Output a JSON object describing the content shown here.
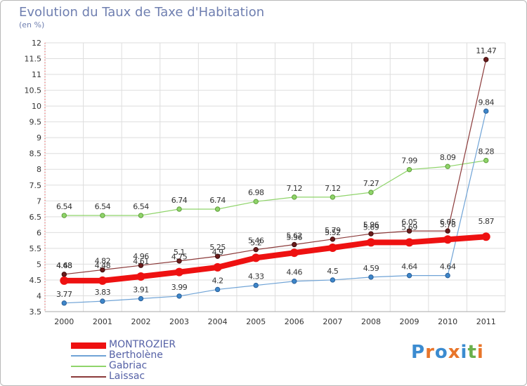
{
  "title": "Evolution du Taux de Taxe d'Habitation",
  "subtitle": "(en %)",
  "logo": {
    "text": "Proxiti",
    "colors": [
      "#3b8bd0",
      "#e8752a",
      "#3b8bd0",
      "#e8752a",
      "#3b8bd0",
      "#6ab04c",
      "#e8752a"
    ]
  },
  "chart_data": {
    "type": "line",
    "title": "Evolution du Taux de Taxe d'Habitation",
    "ylabel": "(en %)",
    "xlabel": "",
    "x": [
      "2000",
      "2001",
      "2002",
      "2003",
      "2004",
      "2005",
      "2006",
      "2007",
      "2008",
      "2009",
      "2010",
      "2011"
    ],
    "ylim": [
      3.5,
      12
    ],
    "yticks": [
      3.5,
      4,
      4.5,
      5,
      5.5,
      6,
      6.5,
      7,
      7.5,
      8,
      8.5,
      9,
      9.5,
      10,
      10.5,
      11,
      11.5,
      12
    ],
    "ytick_labels": [
      "3.5",
      "4",
      "4.5",
      "5",
      "5.5",
      "6",
      "6.5",
      "7",
      "7.5",
      "8",
      "8.5",
      "9",
      "9.5",
      "10",
      "10.5",
      "11",
      "11.5",
      "12"
    ],
    "grid": true,
    "legend_position": "bottom-left",
    "series": [
      {
        "name": "Gabriac",
        "color": "#8fd46a",
        "marker": "#8fd46a",
        "values": [
          6.54,
          6.54,
          6.54,
          6.74,
          6.74,
          6.98,
          7.12,
          7.12,
          7.27,
          7.99,
          8.09,
          8.28
        ],
        "labels": [
          "6.54",
          "6.54",
          "6.54",
          "6.74",
          "6.74",
          "6.98",
          "7.12",
          "7.12",
          "7.27",
          "7.99",
          "8.09",
          "8.28"
        ]
      },
      {
        "name": "Laissac",
        "color": "#8b3a3a",
        "marker": "#6b1c1c",
        "values": [
          4.68,
          4.82,
          4.96,
          5.1,
          5.25,
          5.46,
          5.62,
          5.79,
          5.96,
          6.05,
          6.05,
          11.47
        ],
        "labels": [
          "4.68",
          "4.82",
          "4.96",
          "5.1",
          "5.25",
          "5.46",
          "5.62",
          "5.79",
          "5.96",
          "6.05",
          "6.05",
          "11.47"
        ]
      },
      {
        "name": "Bertholène",
        "color": "#6fa3d6",
        "marker": "#3d86c9",
        "values": [
          3.77,
          3.83,
          3.91,
          3.99,
          4.2,
          4.33,
          4.46,
          4.5,
          4.59,
          4.64,
          4.64,
          9.84
        ],
        "labels": [
          "3.77",
          "3.83",
          "3.91",
          "3.99",
          "4.2",
          "4.33",
          "4.46",
          "4.5",
          "4.59",
          "4.64",
          "4.64",
          "9.84"
        ]
      },
      {
        "name": "MONTROZIER",
        "color": "#ee1111",
        "marker": "#ee1111",
        "values": [
          4.48,
          4.48,
          4.61,
          4.75,
          4.9,
          5.2,
          5.36,
          5.52,
          5.69,
          5.69,
          5.78,
          5.87
        ],
        "labels": [
          "4.48",
          "4.48",
          "4.61",
          "4.75",
          "4.9",
          "5.2",
          "5.36",
          "5.52",
          "5.69",
          "5.69",
          "5.78",
          "5.87"
        ]
      }
    ]
  }
}
